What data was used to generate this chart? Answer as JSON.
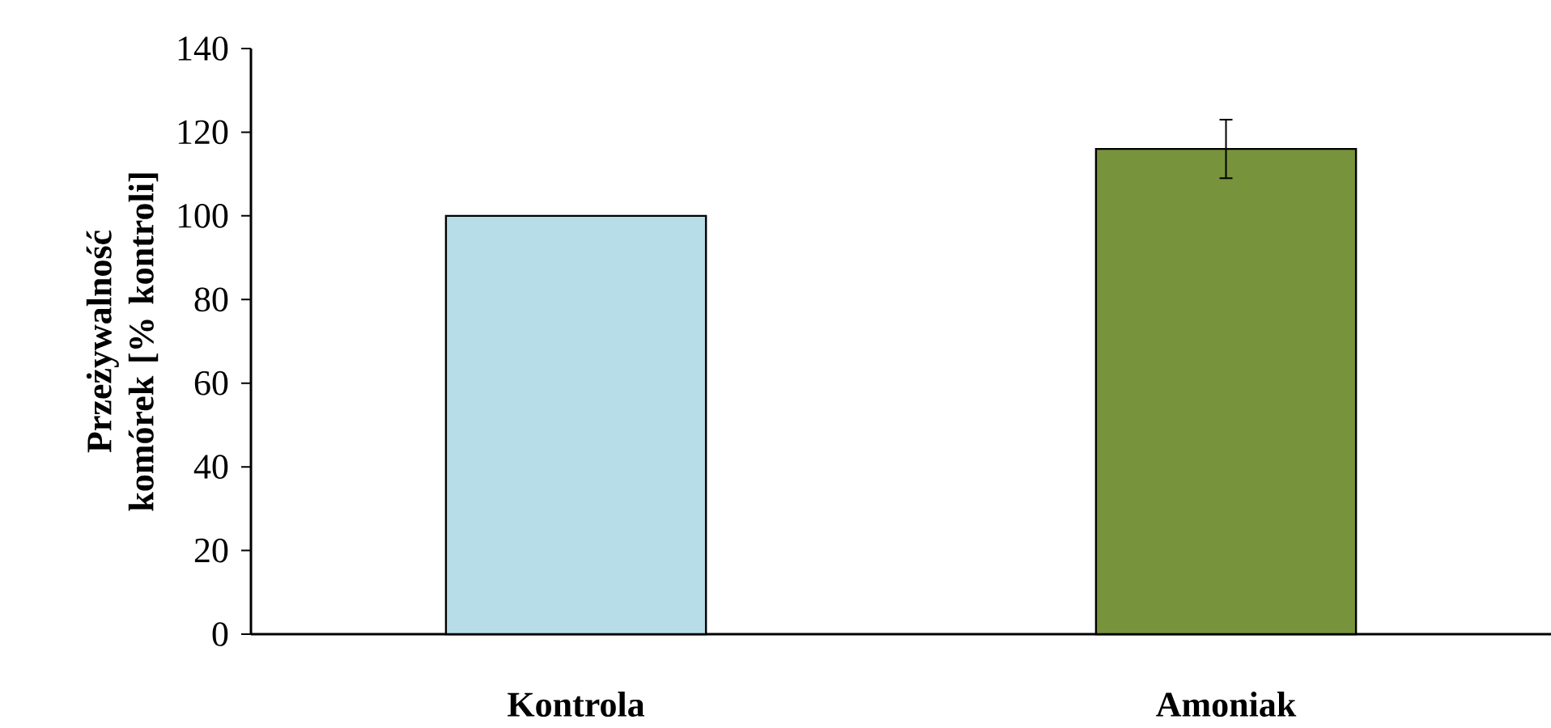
{
  "chart_data": {
    "type": "bar",
    "ylabel": "Przeżywalność komórek [% kontroli]",
    "categories": [
      "Kontrola",
      "Amoniak"
    ],
    "values": [
      100,
      116
    ],
    "colors": [
      "#b7dde8",
      "#77933c"
    ],
    "errors": [
      null,
      7
    ],
    "ylim": [
      0,
      140
    ],
    "yticks": [
      0,
      20,
      40,
      60,
      80,
      100,
      120,
      140
    ],
    "grid": false
  }
}
